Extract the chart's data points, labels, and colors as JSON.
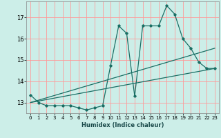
{
  "xlabel": "Humidex (Indice chaleur)",
  "background_color": "#cceee8",
  "grid_color": "#ff9999",
  "line_color": "#1a6e64",
  "xlim": [
    -0.5,
    23.5
  ],
  "ylim": [
    12.5,
    17.75
  ],
  "xticks": [
    0,
    1,
    2,
    3,
    4,
    5,
    6,
    7,
    8,
    9,
    10,
    11,
    12,
    13,
    14,
    15,
    16,
    17,
    18,
    19,
    20,
    21,
    22,
    23
  ],
  "yticks": [
    13,
    14,
    15,
    16,
    17
  ],
  "curve1_x": [
    0,
    1,
    2,
    3,
    4,
    5,
    6,
    7,
    8,
    9,
    10,
    11,
    12,
    13,
    14,
    15,
    16,
    17,
    18,
    19,
    20,
    21,
    22,
    23
  ],
  "curve1_y": [
    13.35,
    13.0,
    12.85,
    12.85,
    12.85,
    12.85,
    12.75,
    12.65,
    12.75,
    12.85,
    14.75,
    16.6,
    16.25,
    13.3,
    16.6,
    16.6,
    16.6,
    17.55,
    17.15,
    16.0,
    15.55,
    14.9,
    14.6,
    14.6
  ],
  "curve2_x": [
    0,
    23
  ],
  "curve2_y": [
    13.0,
    14.6
  ],
  "curve3_x": [
    0,
    23
  ],
  "curve3_y": [
    13.0,
    15.55
  ]
}
